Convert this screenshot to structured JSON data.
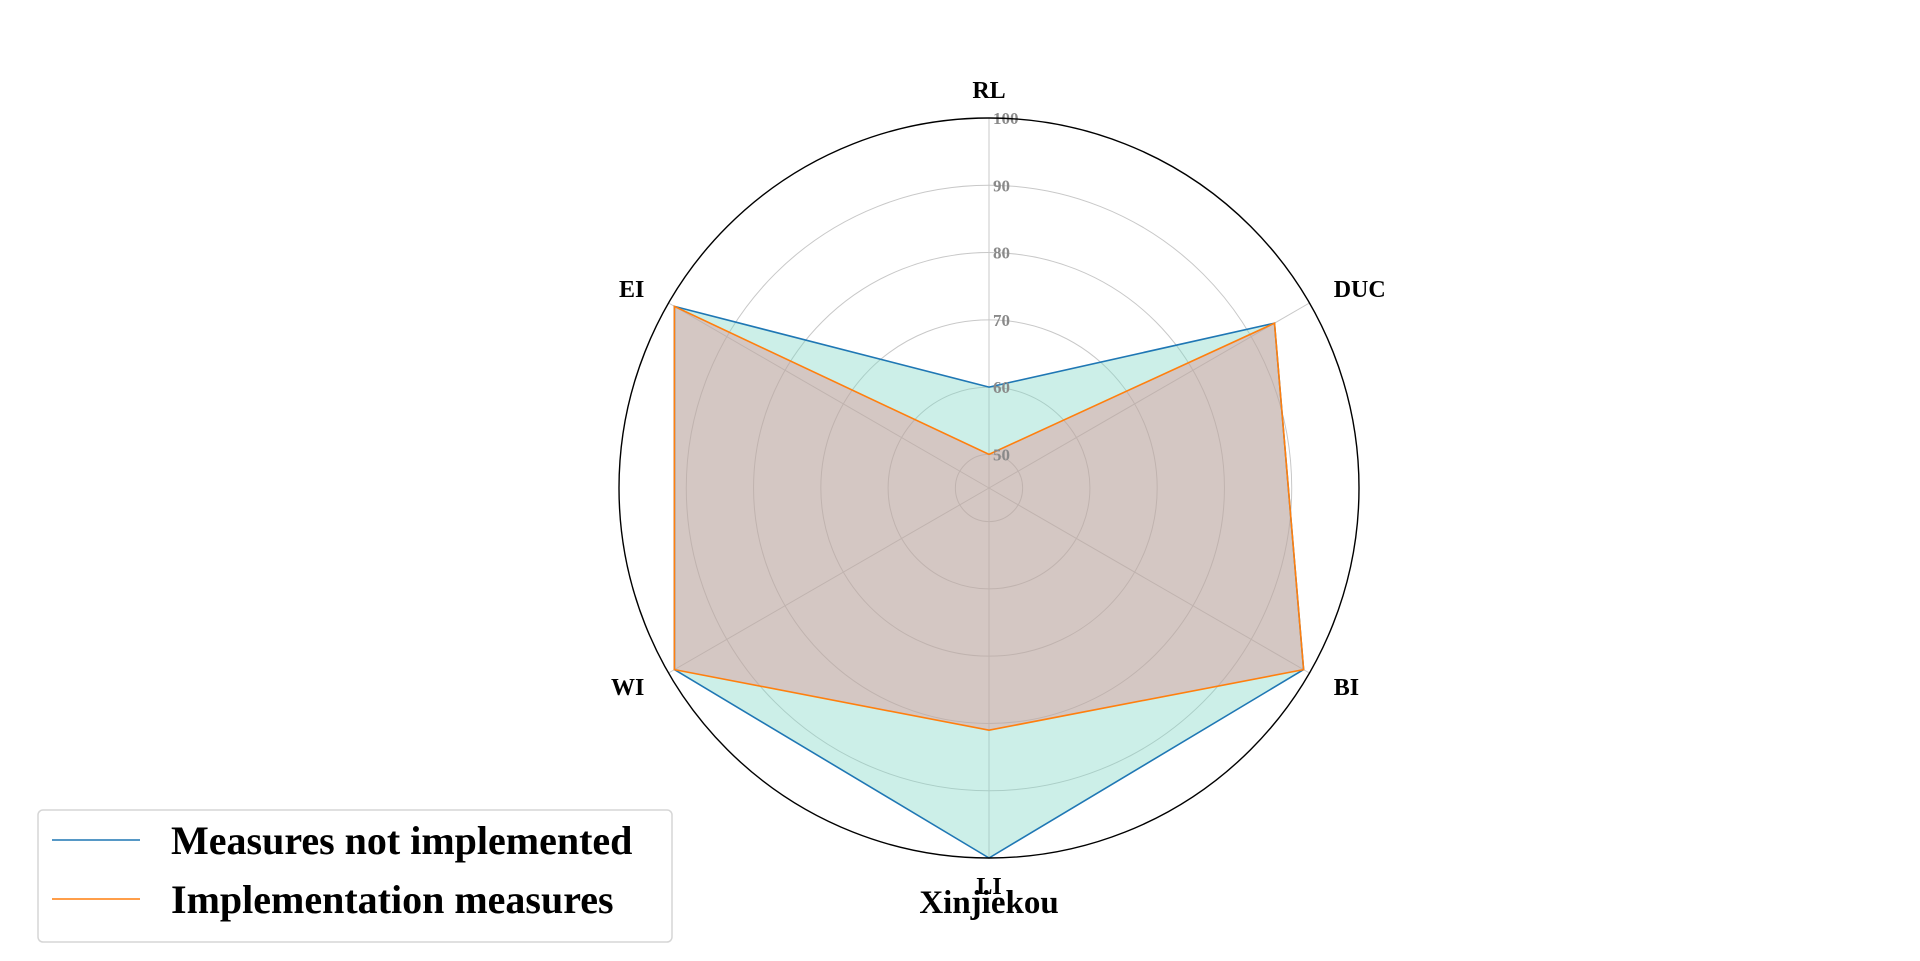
{
  "chart_data": {
    "type": "radar",
    "title": "Xinjiekou",
    "axes": [
      "RL",
      "DUC",
      "BI",
      "LI",
      "WI",
      "EI"
    ],
    "rlim": [
      45,
      100
    ],
    "ticks": [
      50,
      60,
      70,
      80,
      90,
      100
    ],
    "grid": true,
    "legend_position": "bottom-left",
    "series": [
      {
        "name": "Measures not implemented",
        "values": [
          60,
          94,
          99,
          100,
          99,
          99
        ],
        "line_color": "#1f77b4",
        "fill_color": "#7fd8c6"
      },
      {
        "name": "Implementation measures",
        "values": [
          50,
          94,
          99,
          81,
          99,
          99
        ],
        "line_color": "#ff7f0e",
        "fill_color": "#e08c8c"
      }
    ]
  }
}
